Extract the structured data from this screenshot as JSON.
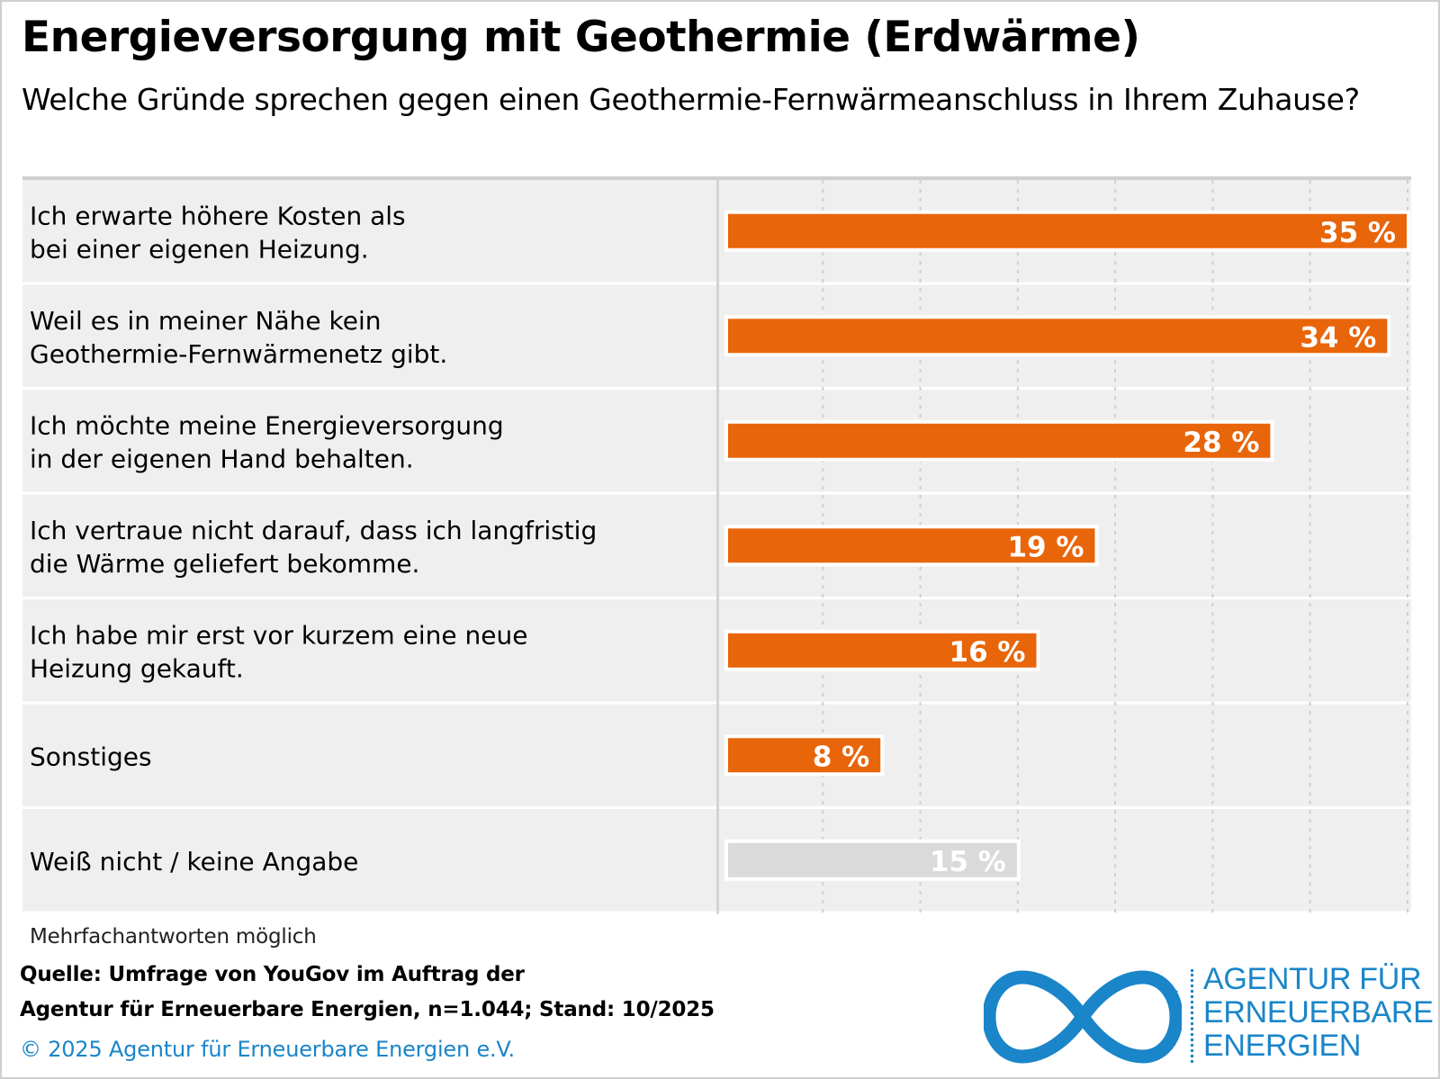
{
  "title": "Energieversorgung mit Geothermie (Erdwärme)",
  "subtitle": "Welche Gründe sprechen gegen einen Geothermie-Fernwärmeanschluss in Ihrem Zuhause?",
  "note": "Mehrfachantworten möglich",
  "source": {
    "line1": "Quelle: Umfrage von YouGov im Auftrag der",
    "line2": "Agentur für Erneuerbare Energien, n=1.044; Stand: 10/2025"
  },
  "copyright": "© 2025 Agentur für Erneuerbare Energien e.V.",
  "logo": {
    "line1": "AGENTUR FÜR",
    "line2": "ERNEUERBARE",
    "line3": "ENERGIEN",
    "color": "#1a85c9"
  },
  "colors": {
    "bar": "#e8650a",
    "bar_neutral": "#dadada",
    "row_background": "#efefef",
    "grid": "#cfcfcf"
  },
  "chart_data": {
    "type": "bar",
    "orientation": "horizontal",
    "title": "Energieversorgung mit Geothermie (Erdwärme)",
    "subtitle": "Welche Gründe sprechen gegen einen Geothermie-Fernwärmeanschluss in Ihrem Zuhause?",
    "xlabel": "",
    "ylabel": "",
    "xlim": [
      0,
      35
    ],
    "grid": true,
    "unit": "%",
    "categories": [
      [
        "Ich erwarte höhere Kosten als",
        "bei einer eigenen Heizung."
      ],
      [
        "Weil es in meiner Nähe kein",
        "Geothermie-Fernwärmenetz gibt."
      ],
      [
        "Ich möchte meine Energieversorgung",
        "in der eigenen Hand behalten."
      ],
      [
        "Ich vertraue nicht darauf, dass ich langfristig",
        "die Wärme geliefert bekomme."
      ],
      [
        "Ich habe mir erst vor kurzem eine neue",
        "Heizung gekauft."
      ],
      [
        "Sonstiges"
      ],
      [
        "Weiß nicht / keine Angabe"
      ]
    ],
    "values": [
      35,
      34,
      28,
      19,
      16,
      8,
      15
    ],
    "labels": [
      "35 %",
      "34 %",
      "28 %",
      "19 %",
      "16 %",
      "8 %",
      "15 %"
    ],
    "neutral": [
      false,
      false,
      false,
      false,
      false,
      false,
      true
    ]
  }
}
